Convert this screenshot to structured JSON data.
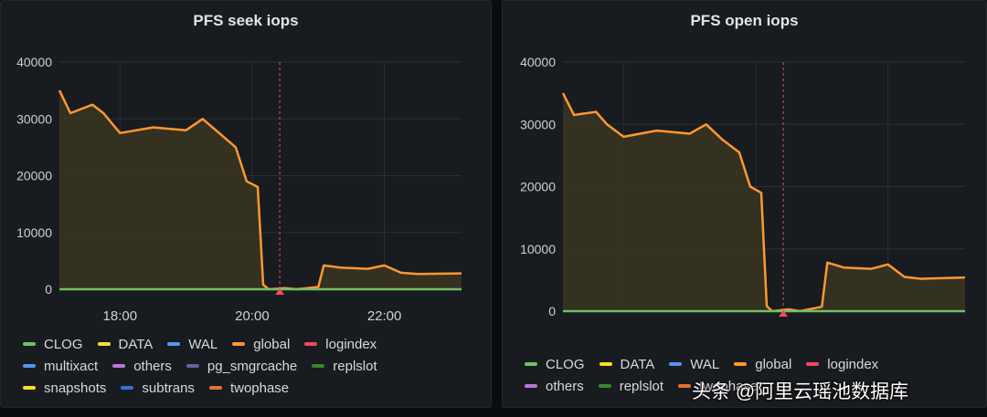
{
  "panels": [
    {
      "title": "PFS seek iops",
      "legend": [
        [
          "CLOG",
          "DATA",
          "WAL",
          "global",
          "logindex"
        ],
        [
          "multixact",
          "others",
          "pg_smgrcache",
          "replslot"
        ],
        [
          "snapshots",
          "subtrans",
          "twophase"
        ]
      ]
    },
    {
      "title": "PFS open iops",
      "legend": [
        [
          "CLOG",
          "DATA",
          "WAL",
          "global",
          "logindex"
        ],
        [
          "others",
          "replslot",
          "twophase"
        ]
      ]
    }
  ],
  "series_colors": {
    "CLOG": "#73bf69",
    "DATA": "#fade2a",
    "WAL": "#5794f2",
    "global": "#ff9830",
    "logindex": "#f2495c",
    "multixact": "#5794f2",
    "others": "#b877d9",
    "pg_smgrcache": "#705da0",
    "replslot": "#37872d",
    "snapshots": "#fade2a",
    "subtrans": "#3274d9",
    "twophase": "#e0752d"
  },
  "watermark": "头条 @阿里云瑶池数据库",
  "chart_data": [
    {
      "type": "line",
      "title": "PFS seek iops",
      "x_ticks": [
        "18:00",
        "20:00",
        "22:00"
      ],
      "x_range": [
        "17:05",
        "23:10"
      ],
      "y_ticks": [
        0,
        10000,
        20000,
        30000,
        40000
      ],
      "ylim": [
        0,
        40000
      ],
      "annotation_time": "20:25",
      "grid": true,
      "legend_position": "bottom",
      "series": [
        {
          "name": "global",
          "x": [
            "17:05",
            "17:15",
            "17:35",
            "17:45",
            "18:00",
            "18:30",
            "19:00",
            "19:15",
            "19:30",
            "19:45",
            "19:55",
            "20:05",
            "20:10",
            "20:15",
            "20:30",
            "20:40",
            "21:00",
            "21:05",
            "21:20",
            "21:45",
            "22:00",
            "22:15",
            "22:30",
            "23:10"
          ],
          "y": [
            35000,
            31000,
            32500,
            31000,
            27500,
            28500,
            28000,
            30000,
            27500,
            25000,
            19000,
            18000,
            800,
            0,
            200,
            0,
            400,
            4200,
            3800,
            3600,
            4200,
            2900,
            2700,
            2800
          ]
        },
        {
          "name": "CLOG",
          "x": [
            "17:05",
            "23:10"
          ],
          "y": [
            0,
            0
          ]
        }
      ]
    },
    {
      "type": "line",
      "title": "PFS open iops",
      "x_ticks": [
        "18:00",
        "20:00",
        "22:00"
      ],
      "x_range": [
        "17:05",
        "23:10"
      ],
      "y_ticks": [
        0,
        10000,
        20000,
        30000,
        40000
      ],
      "ylim": [
        0,
        40000
      ],
      "annotation_time": "20:25",
      "grid": true,
      "legend_position": "bottom",
      "series": [
        {
          "name": "global",
          "x": [
            "17:05",
            "17:15",
            "17:35",
            "17:45",
            "18:00",
            "18:30",
            "19:00",
            "19:15",
            "19:30",
            "19:45",
            "19:55",
            "20:05",
            "20:10",
            "20:15",
            "20:30",
            "20:40",
            "21:00",
            "21:05",
            "21:20",
            "21:45",
            "22:00",
            "22:15",
            "22:30",
            "23:10"
          ],
          "y": [
            35000,
            31500,
            32000,
            30000,
            28000,
            29000,
            28500,
            30000,
            27500,
            25500,
            20000,
            19000,
            800,
            0,
            300,
            0,
            700,
            7800,
            7000,
            6800,
            7500,
            5500,
            5200,
            5400
          ]
        },
        {
          "name": "CLOG",
          "x": [
            "17:05",
            "23:10"
          ],
          "y": [
            0,
            0
          ]
        }
      ]
    }
  ]
}
